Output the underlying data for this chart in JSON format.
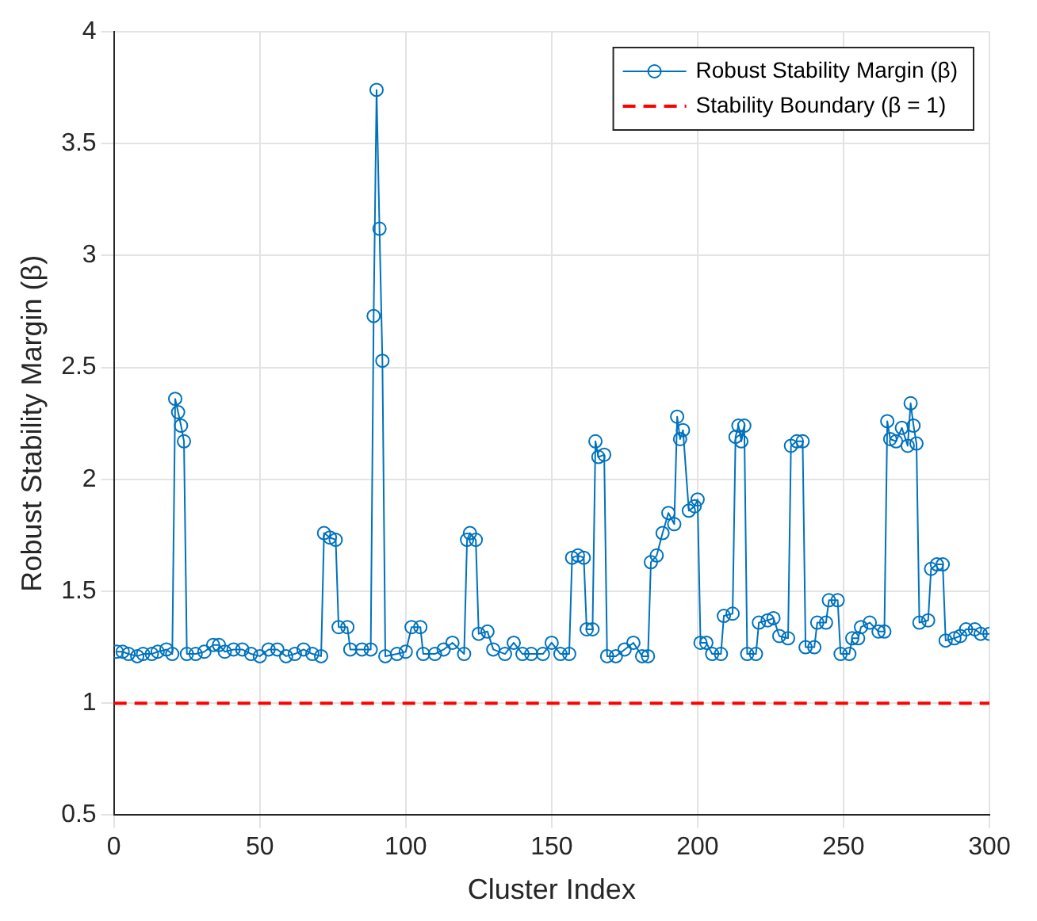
{
  "chart_data": {
    "type": "line",
    "xlabel": "Cluster Index",
    "ylabel": "Robust Stability Margin (β)",
    "xlim": [
      0,
      300
    ],
    "ylim": [
      0.5,
      4
    ],
    "xticks": [
      0,
      50,
      100,
      150,
      200,
      250,
      300
    ],
    "yticks": [
      0.5,
      1,
      1.5,
      2,
      2.5,
      3,
      3.5,
      4
    ],
    "grid": true,
    "legend": "top right",
    "series": [
      {
        "name": "Robust Stability Margin (β)",
        "color": "#0072bd",
        "marker": "circle",
        "line_style": "solid",
        "x": [
          1,
          3,
          5,
          8,
          10,
          13,
          15,
          18,
          20,
          21,
          22,
          23,
          24,
          25,
          28,
          31,
          34,
          36,
          38,
          41,
          44,
          47,
          50,
          53,
          56,
          59,
          62,
          65,
          68,
          71,
          72,
          74,
          76,
          77,
          80,
          81,
          85,
          88,
          89,
          90,
          91,
          92,
          93,
          97,
          100,
          102,
          105,
          106,
          110,
          113,
          116,
          120,
          121,
          122,
          124,
          125,
          128,
          130,
          134,
          137,
          140,
          143,
          147,
          150,
          153,
          156,
          157,
          159,
          161,
          162,
          164,
          165,
          166,
          168,
          169,
          172,
          175,
          178,
          181,
          183,
          184,
          186,
          188,
          190,
          192,
          193,
          194,
          195,
          197,
          199,
          200,
          201,
          203,
          205,
          208,
          209,
          212,
          213,
          214,
          215,
          216,
          217,
          220,
          221,
          224,
          226,
          228,
          231,
          232,
          234,
          236,
          237,
          240,
          241,
          244,
          245,
          248,
          249,
          252,
          253,
          255,
          256,
          259,
          262,
          264,
          265,
          266,
          268,
          270,
          272,
          273,
          274,
          275,
          276,
          279,
          280,
          282,
          284,
          285,
          288,
          290,
          292,
          295,
          297,
          300
        ],
        "values": [
          1.23,
          1.23,
          1.22,
          1.21,
          1.22,
          1.22,
          1.23,
          1.24,
          1.22,
          2.36,
          2.3,
          2.24,
          2.17,
          1.22,
          1.22,
          1.23,
          1.26,
          1.26,
          1.23,
          1.24,
          1.24,
          1.22,
          1.21,
          1.24,
          1.24,
          1.21,
          1.22,
          1.24,
          1.22,
          1.21,
          1.76,
          1.74,
          1.73,
          1.34,
          1.34,
          1.24,
          1.24,
          1.24,
          2.73,
          3.74,
          3.12,
          2.53,
          1.21,
          1.22,
          1.23,
          1.34,
          1.34,
          1.22,
          1.22,
          1.24,
          1.27,
          1.22,
          1.73,
          1.76,
          1.73,
          1.31,
          1.32,
          1.24,
          1.22,
          1.27,
          1.22,
          1.22,
          1.22,
          1.27,
          1.22,
          1.22,
          1.65,
          1.66,
          1.65,
          1.33,
          1.33,
          2.17,
          2.1,
          2.11,
          1.21,
          1.21,
          1.24,
          1.27,
          1.21,
          1.21,
          1.63,
          1.66,
          1.76,
          1.85,
          1.8,
          2.28,
          2.18,
          2.22,
          1.86,
          1.88,
          1.91,
          1.27,
          1.27,
          1.22,
          1.22,
          1.39,
          1.4,
          2.19,
          2.24,
          2.17,
          2.24,
          1.22,
          1.22,
          1.36,
          1.37,
          1.38,
          1.3,
          1.29,
          2.15,
          2.17,
          2.17,
          1.25,
          1.25,
          1.36,
          1.36,
          1.46,
          1.46,
          1.22,
          1.22,
          1.29,
          1.29,
          1.34,
          1.36,
          1.32,
          1.32,
          2.26,
          2.18,
          2.17,
          2.23,
          2.15,
          2.34,
          2.24,
          2.16,
          1.36,
          1.37,
          1.6,
          1.62,
          1.62,
          1.28,
          1.29,
          1.3,
          1.33,
          1.33,
          1.31,
          1.31
        ]
      },
      {
        "name": "Stability Boundary (β = 1)",
        "color": "#ff0000",
        "marker": "none",
        "line_style": "dashed",
        "x": [
          0,
          300
        ],
        "values": [
          1,
          1
        ]
      }
    ]
  }
}
